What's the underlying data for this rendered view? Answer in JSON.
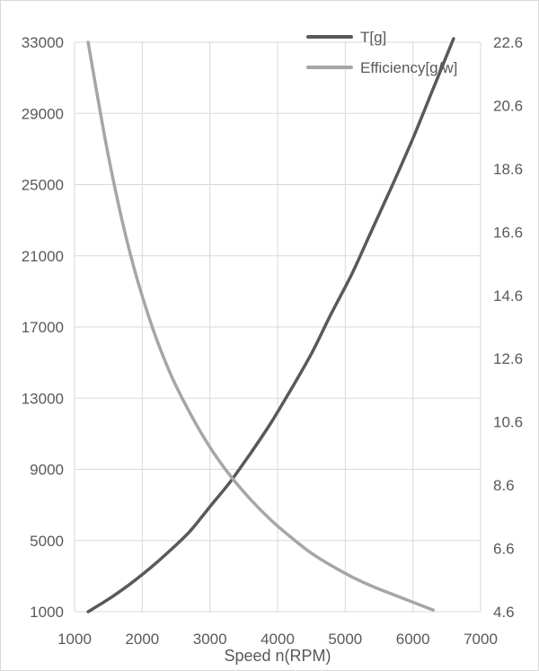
{
  "chart_data": {
    "type": "line",
    "title": "",
    "xlabel": "Speed n(RPM)",
    "ylabel": "",
    "y2label": "",
    "xlim": [
      1000,
      7000
    ],
    "ylim": [
      1000,
      33000
    ],
    "y2lim": [
      4.6,
      22.6
    ],
    "x_ticks": [
      1000,
      2000,
      3000,
      4000,
      5000,
      6000,
      7000
    ],
    "y_ticks": [
      1000,
      5000,
      9000,
      13000,
      17000,
      21000,
      25000,
      29000,
      33000
    ],
    "y2_ticks": [
      4.6,
      6.6,
      8.6,
      10.6,
      12.6,
      14.6,
      16.6,
      18.6,
      20.6,
      22.6
    ],
    "x_tick_labels": [
      "1000",
      "2000",
      "3000",
      "4000",
      "5000",
      "6000",
      "7000"
    ],
    "y_tick_labels": [
      "1000",
      "5000",
      "9000",
      "13000",
      "17000",
      "21000",
      "25000",
      "29000",
      "33000"
    ],
    "y2_tick_labels": [
      "4.6",
      "6.6",
      "8.6",
      "10.6",
      "12.6",
      "14.6",
      "16.6",
      "18.6",
      "20.6",
      "22.6"
    ],
    "grid": true,
    "legend": "top-right",
    "series": [
      {
        "name": "T[g]",
        "axis": "left",
        "color": "#595959",
        "x": [
          1200,
          1500,
          1800,
          2100,
          2400,
          2700,
          3000,
          3300,
          3600,
          3900,
          4200,
          4500,
          4800,
          5100,
          5400,
          5700,
          6000,
          6300,
          6600
        ],
        "y": [
          1000,
          1700,
          2500,
          3400,
          4400,
          5500,
          6900,
          8300,
          9900,
          11600,
          13500,
          15500,
          17800,
          20000,
          22500,
          25000,
          27600,
          30400,
          33200
        ]
      },
      {
        "name": "Efficiency[g/w]",
        "axis": "right",
        "color": "#a6a6a6",
        "x": [
          1200,
          1500,
          1800,
          2100,
          2400,
          2700,
          3000,
          3300,
          3600,
          3900,
          4200,
          4500,
          4800,
          5100,
          5400,
          5700,
          6000,
          6300
        ],
        "y": [
          22.6,
          19.0,
          16.1,
          13.9,
          12.2,
          10.9,
          9.8,
          8.9,
          8.15,
          7.5,
          6.95,
          6.45,
          6.05,
          5.7,
          5.4,
          5.15,
          4.9,
          4.65
        ]
      }
    ]
  }
}
